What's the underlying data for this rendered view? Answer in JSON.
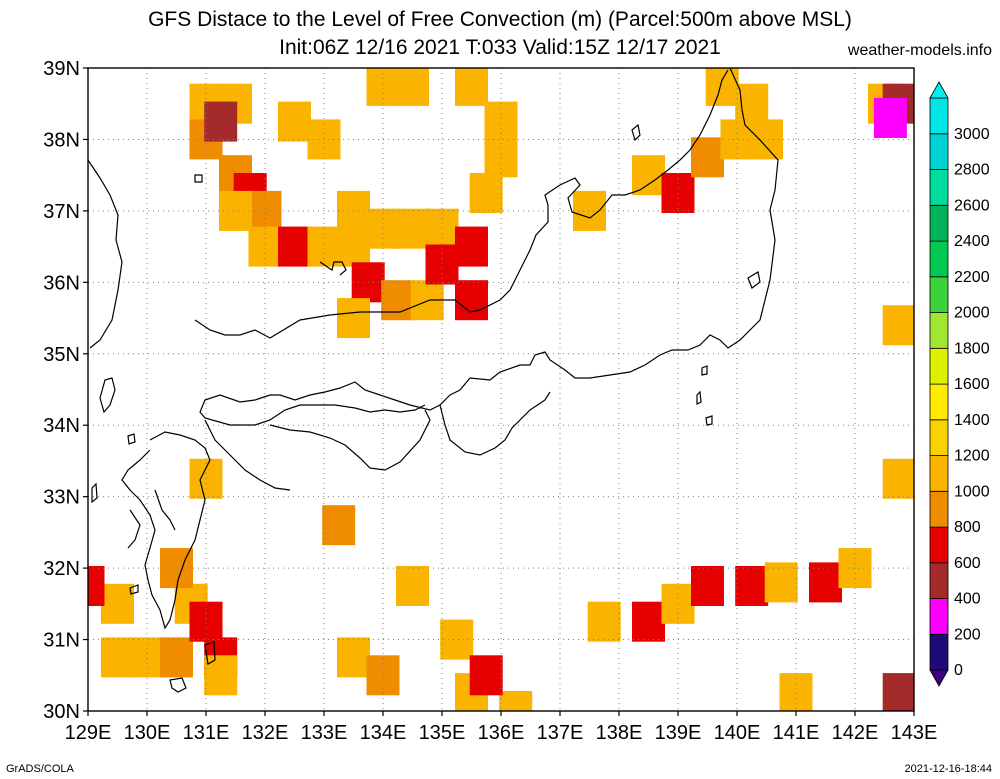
{
  "title_line1": "GFS Distace to the Level of Free Convection (m) (Parcel:500m above MSL)",
  "title_line2": "Init:06Z 12/16 2021 T:033 Valid:15Z 12/17 2021",
  "credit": "weather-models.info",
  "footer_left": "GrADS/COLA",
  "footer_right": "2021-12-16-18:44",
  "lat_labels": [
    "30N",
    "31N",
    "32N",
    "33N",
    "34N",
    "35N",
    "36N",
    "37N",
    "38N",
    "39N"
  ],
  "lon_labels": [
    "129E",
    "130E",
    "131E",
    "132E",
    "133E",
    "134E",
    "135E",
    "136E",
    "137E",
    "138E",
    "139E",
    "140E",
    "141E",
    "142E",
    "143E"
  ],
  "colorbar": {
    "labels": [
      "0",
      "200",
      "400",
      "600",
      "800",
      "1000",
      "1200",
      "1400",
      "1600",
      "1800",
      "2000",
      "2200",
      "2400",
      "2600",
      "2800",
      "3000"
    ],
    "colors": [
      "#1e0a78",
      "#ff00ff",
      "#a52a2a",
      "#e60000",
      "#f08c00",
      "#fab400",
      "#fad200",
      "#ffeb00",
      "#dcf000",
      "#a0e632",
      "#3cd23c",
      "#00c850",
      "#00b45a",
      "#00dca0",
      "#00d2d2",
      "#00e6e6"
    ],
    "under_color": "#3c0080",
    "over_color": "#00f0f0"
  },
  "chart_data": {
    "type": "heatmap",
    "title": "GFS Distace to the Level of Free Convection (m) (Parcel:500m above MSL)",
    "lon_range": [
      129,
      143
    ],
    "lat_range": [
      30,
      39
    ],
    "grid": true,
    "units": "m",
    "levels": [
      0,
      200,
      400,
      600,
      800,
      1000,
      1200,
      1400,
      1600,
      1800,
      2000,
      2200,
      2400,
      2600,
      2800,
      3000
    ],
    "cells": [
      [
        131.0,
        38.5,
        1000
      ],
      [
        131.5,
        38.5,
        1000
      ],
      [
        131.0,
        38.0,
        900
      ],
      [
        131.25,
        38.25,
        450
      ],
      [
        131.5,
        37.5,
        900
      ],
      [
        131.75,
        37.25,
        700
      ],
      [
        132.0,
        37.0,
        900
      ],
      [
        131.5,
        37.0,
        1000
      ],
      [
        132.0,
        36.5,
        1000
      ],
      [
        132.5,
        36.5,
        700
      ],
      [
        133.0,
        36.5,
        1000
      ],
      [
        133.5,
        36.5,
        1000
      ],
      [
        133.5,
        37.0,
        1000
      ],
      [
        134.0,
        36.75,
        1000
      ],
      [
        134.5,
        36.75,
        1000
      ],
      [
        135.0,
        36.75,
        1000
      ],
      [
        135.5,
        36.5,
        650
      ],
      [
        133.75,
        36.0,
        650
      ],
      [
        134.25,
        35.75,
        900
      ],
      [
        134.75,
        35.75,
        1000
      ],
      [
        133.5,
        35.5,
        1000
      ],
      [
        135.5,
        35.75,
        600
      ],
      [
        135.0,
        36.25,
        700
      ],
      [
        134.0,
        38.75,
        1000
      ],
      [
        134.5,
        38.75,
        1000
      ],
      [
        135.5,
        38.75,
        1000
      ],
      [
        136.0,
        38.25,
        1000
      ],
      [
        136.0,
        37.75,
        1000
      ],
      [
        135.75,
        37.25,
        1000
      ],
      [
        132.5,
        38.25,
        1000
      ],
      [
        133.0,
        38.0,
        1000
      ],
      [
        137.5,
        37.0,
        1000
      ],
      [
        138.5,
        37.5,
        1000
      ],
      [
        139.0,
        37.25,
        650
      ],
      [
        139.5,
        37.75,
        900
      ],
      [
        140.0,
        38.0,
        1000
      ],
      [
        139.75,
        38.75,
        1000
      ],
      [
        140.25,
        38.5,
        1000
      ],
      [
        140.5,
        38.0,
        1000
      ],
      [
        142.5,
        38.5,
        1000
      ],
      [
        142.75,
        38.5,
        450
      ],
      [
        142.6,
        38.3,
        200
      ],
      [
        142.75,
        35.4,
        1000
      ],
      [
        129.5,
        31.5,
        1000
      ],
      [
        129.5,
        30.75,
        1000
      ],
      [
        130.0,
        30.75,
        1000
      ],
      [
        130.5,
        30.75,
        900
      ],
      [
        130.75,
        31.5,
        1000
      ],
      [
        131.0,
        31.25,
        650
      ],
      [
        131.25,
        30.75,
        650
      ],
      [
        131.25,
        30.5,
        1000
      ],
      [
        130.5,
        32.0,
        900
      ],
      [
        129.0,
        31.75,
        650
      ],
      [
        131.0,
        33.25,
        1000
      ],
      [
        133.25,
        32.6,
        900
      ],
      [
        133.5,
        30.75,
        1000
      ],
      [
        134.0,
        30.5,
        900
      ],
      [
        134.5,
        31.75,
        1000
      ],
      [
        135.25,
        31.0,
        1000
      ],
      [
        135.5,
        30.25,
        1000
      ],
      [
        136.25,
        30.0,
        1000
      ],
      [
        135.75,
        30.5,
        650
      ],
      [
        137.75,
        31.25,
        1000
      ],
      [
        138.5,
        31.25,
        650
      ],
      [
        139.0,
        31.5,
        1000
      ],
      [
        139.5,
        31.75,
        700
      ],
      [
        140.25,
        31.75,
        650
      ],
      [
        140.75,
        31.8,
        1000
      ],
      [
        141.5,
        31.8,
        700
      ],
      [
        142.0,
        32.0,
        1000
      ],
      [
        141.0,
        30.25,
        1000
      ],
      [
        142.75,
        30.25,
        450
      ],
      [
        142.75,
        33.25,
        1000
      ]
    ]
  }
}
